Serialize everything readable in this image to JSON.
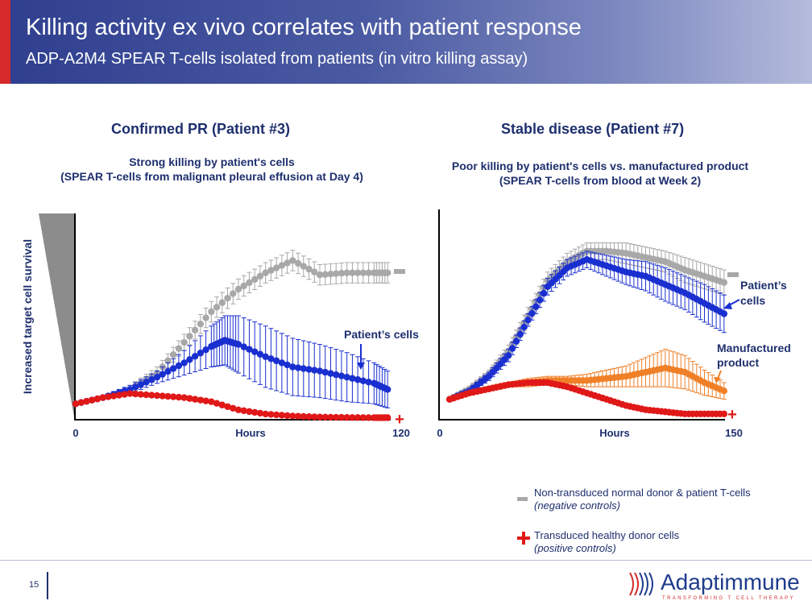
{
  "header": {
    "title": "Killing activity ex vivo correlates with patient response",
    "subtitle": "ADP-A2M4 SPEAR T-cells isolated from patients (in vitro killing assay)"
  },
  "left_panel": {
    "title": "Confirmed PR (Patient #3)",
    "sub_line1": "Strong killing by patient's cells",
    "sub_line2": "(SPEAR T-cells from malignant pleural effusion at Day 4)"
  },
  "right_panel": {
    "title": "Stable disease (Patient #7)",
    "sub_line1": "Poor killing by patient's cells vs. manufactured product",
    "sub_line2": "(SPEAR T-cells from blood at Week 2)"
  },
  "legend": {
    "neg_line1": "Non-transduced normal donor & patient T-cells",
    "neg_line2": "(negative controls)",
    "pos_line1": "Transduced healthy donor cells",
    "pos_line2": "(positive controls)"
  },
  "footer": {
    "page": "15",
    "logo": "Adaptimmune",
    "tagline": "TRANSFORMING T CELL THERAPY"
  },
  "colors": {
    "gray": "#a8a8a8",
    "blue": "#1a2fd0",
    "red": "#e01818",
    "orange": "#f08028",
    "navy": "#1e2f6e",
    "accent_red": "#d62a2a"
  },
  "chart_data": [
    {
      "type": "line",
      "ylabel": "Increased target cell survival",
      "xlabel": "Hours",
      "x_ticks": [
        "0",
        "120"
      ],
      "xlim": [
        0,
        120
      ],
      "ylim": [
        0,
        100
      ],
      "annotations": [
        {
          "text": "Patient’s cells",
          "series": "Patient’s cells"
        },
        {
          "text": "-",
          "series": "negative control"
        },
        {
          "text": "+",
          "series": "positive control"
        }
      ],
      "series": [
        {
          "key": "neg",
          "name": "",
          "color": "#a8a8a8",
          "x": [
            0,
            10,
            20,
            30,
            40,
            50,
            60,
            70,
            80,
            90,
            100,
            110,
            115
          ],
          "y": [
            7,
            10,
            14,
            22,
            37,
            52,
            63,
            71,
            77,
            70,
            71,
            71,
            71
          ],
          "err": [
            1,
            1,
            2,
            3,
            4,
            5,
            5,
            5,
            5,
            5,
            5,
            5,
            5
          ]
        },
        {
          "key": "patient",
          "name": "Patient’s cells",
          "color": "#1a2fd0",
          "x": [
            0,
            10,
            20,
            30,
            40,
            50,
            55,
            60,
            70,
            80,
            90,
            100,
            110,
            115
          ],
          "y": [
            7,
            10,
            14,
            20,
            27,
            35,
            38,
            36,
            30,
            25,
            23,
            20,
            17,
            14
          ],
          "err": [
            1,
            1,
            2,
            3,
            6,
            10,
            12,
            14,
            15,
            14,
            13,
            12,
            10,
            9
          ]
        },
        {
          "key": "pos",
          "name": "",
          "color": "#e01818",
          "x": [
            0,
            10,
            20,
            30,
            40,
            50,
            60,
            70,
            80,
            90,
            100,
            110,
            115
          ],
          "y": [
            7,
            10,
            12,
            11,
            10,
            8,
            4,
            2,
            1,
            0.5,
            0.3,
            0.2,
            0.2
          ],
          "err": [
            1,
            1,
            1,
            1,
            1,
            1,
            1,
            0.5,
            0.5,
            0.3,
            0.3,
            0.2,
            0.2
          ]
        }
      ]
    },
    {
      "type": "line",
      "xlabel": "Hours",
      "x_ticks": [
        "0",
        "150"
      ],
      "xlim": [
        0,
        150
      ],
      "ylim": [
        0,
        100
      ],
      "annotations": [
        {
          "text": "Patient’s cells",
          "series": "Patient’s cells"
        },
        {
          "text": "Manufactured product",
          "series": "Manufactured product"
        },
        {
          "text": "-",
          "series": "negative control"
        },
        {
          "text": "+",
          "series": "positive control"
        }
      ],
      "series": [
        {
          "key": "neg",
          "name": "",
          "color": "#a8a8a8",
          "x": [
            5,
            15,
            25,
            35,
            45,
            55,
            65,
            75,
            85,
            95,
            105,
            115,
            125,
            135,
            145
          ],
          "y": [
            9,
            14,
            21,
            32,
            49,
            66,
            75,
            80,
            80,
            79,
            77,
            75,
            71,
            68,
            65
          ],
          "err": [
            1,
            1,
            2,
            3,
            4,
            4,
            4,
            4,
            4,
            5,
            5,
            5,
            6,
            6,
            6
          ]
        },
        {
          "key": "patient",
          "name": "Patient’s cells",
          "color": "#1a2fd0",
          "x": [
            5,
            15,
            25,
            35,
            45,
            55,
            65,
            75,
            85,
            95,
            105,
            115,
            125,
            135,
            145
          ],
          "y": [
            9,
            13,
            20,
            30,
            47,
            63,
            72,
            76,
            73,
            70,
            68,
            64,
            60,
            55,
            50
          ],
          "err": [
            1,
            1,
            2,
            3,
            3,
            4,
            4,
            4,
            5,
            6,
            7,
            8,
            8,
            9,
            9
          ]
        },
        {
          "key": "manufactured",
          "name": "Manufactured product",
          "color": "#f08028",
          "x": [
            5,
            15,
            25,
            35,
            45,
            55,
            65,
            75,
            85,
            95,
            105,
            115,
            125,
            135,
            145
          ],
          "y": [
            9,
            12,
            14,
            16,
            17,
            18,
            18,
            18,
            19,
            20,
            22,
            24,
            22,
            17,
            13
          ],
          "err": [
            1,
            1,
            1,
            1,
            2,
            2,
            2,
            3,
            4,
            5,
            7,
            9,
            8,
            6,
            4
          ]
        },
        {
          "key": "pos",
          "name": "",
          "color": "#e01818",
          "x": [
            5,
            15,
            25,
            35,
            45,
            55,
            65,
            75,
            85,
            95,
            105,
            115,
            125,
            135,
            145
          ],
          "y": [
            9,
            12,
            14,
            16,
            17,
            17,
            15,
            12,
            9,
            6,
            4,
            3,
            2,
            2,
            2
          ],
          "err": [
            1,
            1,
            1,
            1,
            1,
            1,
            1,
            1,
            1,
            1,
            1,
            1,
            0.5,
            0.5,
            0.5
          ]
        }
      ]
    }
  ]
}
